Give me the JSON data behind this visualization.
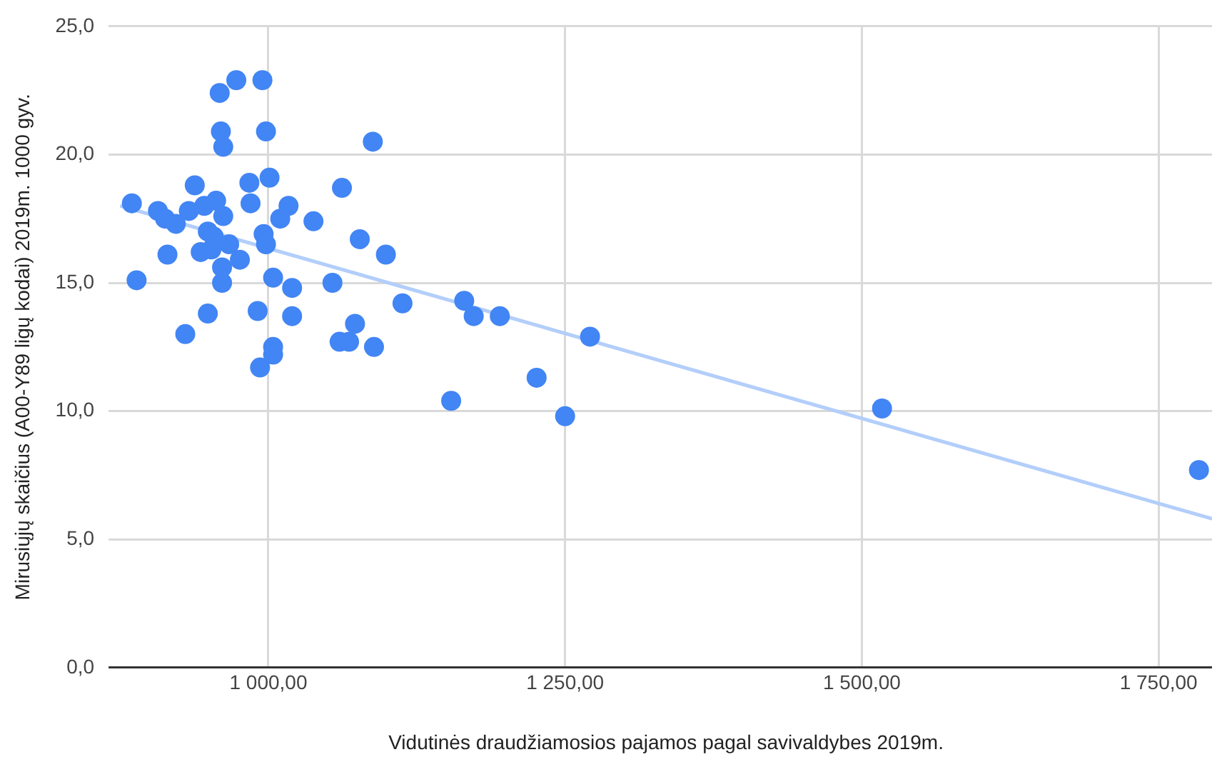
{
  "chart_data": {
    "type": "scatter",
    "xlabel": "Vidutinės draudžiamosios pajamos pagal savivaldybes 2019m.",
    "ylabel": "Mirusiųjų skaičius (A00-Y89 ligų kodai) 2019m. 1000 gyv.",
    "xlim": [
      875,
      1795
    ],
    "xticks": [
      {
        "value": 1000,
        "label": "1 000,00"
      },
      {
        "value": 1250,
        "label": "1 250,00"
      },
      {
        "value": 1500,
        "label": "1 500,00"
      },
      {
        "value": 1750,
        "label": "1 750,00"
      }
    ],
    "ylim": [
      0,
      25
    ],
    "yticks": [
      {
        "value": 0,
        "label": "0,0"
      },
      {
        "value": 5,
        "label": "5,0"
      },
      {
        "value": 10,
        "label": "10,0"
      },
      {
        "value": 15,
        "label": "15,0"
      },
      {
        "value": 20,
        "label": "20,0"
      },
      {
        "value": 25,
        "label": "25,0"
      }
    ],
    "grid": true,
    "legend": false,
    "marker": "circle",
    "series": [
      {
        "type": "line",
        "marker": "none",
        "color": "#b3cefa",
        "x": [
          875,
          1795
        ],
        "values": [
          18.0,
          5.8
        ]
      },
      {
        "color": "#4285f4",
        "x": [
          885,
          889,
          907,
          913,
          915,
          922,
          930,
          933,
          938,
          943,
          946,
          949,
          949,
          952,
          954,
          956,
          959,
          960,
          961,
          961,
          962,
          962,
          967,
          973,
          976,
          984,
          985,
          991,
          993,
          995,
          996,
          998,
          998,
          1001,
          1004,
          1004,
          1004,
          1010,
          1017,
          1020,
          1020,
          1038,
          1054,
          1060,
          1062,
          1068,
          1073,
          1077,
          1088,
          1089,
          1099,
          1113,
          1154,
          1165,
          1173,
          1195,
          1226,
          1250,
          1271,
          1517,
          1784
        ],
        "values": [
          18.1,
          15.1,
          17.8,
          17.5,
          16.1,
          17.3,
          13.0,
          17.8,
          18.8,
          16.2,
          18.0,
          17.0,
          13.8,
          16.3,
          16.8,
          18.2,
          22.4,
          20.9,
          15.0,
          15.6,
          20.3,
          17.6,
          16.5,
          22.9,
          15.9,
          18.9,
          18.1,
          13.9,
          11.7,
          22.9,
          16.9,
          20.9,
          16.5,
          19.1,
          15.2,
          12.5,
          12.2,
          17.5,
          18.0,
          14.8,
          13.7,
          17.4,
          15.0,
          12.7,
          18.7,
          12.7,
          13.4,
          16.7,
          20.5,
          12.5,
          16.1,
          14.2,
          10.4,
          14.3,
          13.7,
          13.7,
          11.3,
          9.8,
          12.9,
          10.1,
          7.7
        ]
      }
    ]
  }
}
